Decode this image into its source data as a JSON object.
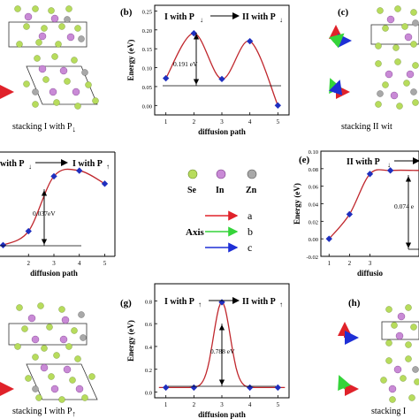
{
  "panels": {
    "b": {
      "label": "(b)",
      "title_left": "I with P",
      "title_right": "II with P",
      "arrow_left": "↓",
      "arrow_right": "↓",
      "ylabel": "Energy (eV)",
      "xlabel": "diffusion path",
      "yticks": [
        "0.00",
        "0.05",
        "0.10",
        "0.15",
        "0.20",
        "0.25"
      ],
      "xticks": [
        "1",
        "2",
        "3",
        "4",
        "5"
      ],
      "annotation": "0.191 eV"
    },
    "c": {
      "label": "(c)",
      "caption": "stacking II wit"
    },
    "a": {
      "caption": "stacking I with P",
      "caption_arrow": "↓"
    },
    "d": {
      "title_left": "with P",
      "title_right": "I with P",
      "arrow_left": "↓",
      "arrow_right": "↑",
      "xlabel": "diffusion path",
      "xticks": [
        "2",
        "3",
        "4",
        "5"
      ],
      "annotation": "0.037eV"
    },
    "e": {
      "label": "(e)",
      "title_left": "II with P",
      "arrow_left": "↓",
      "ylabel": "Energy (eV)",
      "xlabel": "diffusio",
      "yticks": [
        "-0.02",
        "0.00",
        "0.02",
        "0.04",
        "0.06",
        "0.08",
        "0.10"
      ],
      "xticks": [
        "1",
        "2",
        "3"
      ],
      "annotation": "0.074 e"
    },
    "f": {
      "caption": "stacking I with P",
      "caption_arrow": "↑"
    },
    "g": {
      "label": "(g)",
      "title_left": "I with P",
      "title_right": "II with P",
      "arrow_left": "↑",
      "arrow_right": "↑",
      "ylabel": "Energy (eV)",
      "xlabel": "diffusion path",
      "yticks": [
        "0.0",
        "0.2",
        "0.4",
        "0.6",
        "0.8"
      ],
      "xticks": [
        "1",
        "2",
        "3",
        "4",
        "5"
      ],
      "annotation": "0.788 eV"
    },
    "h": {
      "label": "(h)",
      "caption": "stacking I"
    }
  },
  "legend": {
    "atoms": [
      "Se",
      "In",
      "Zn"
    ],
    "atom_colors": [
      "#b7dc5c",
      "#c98ad6",
      "#a8a8a8"
    ],
    "axis_label": "Axis",
    "axes": [
      "a",
      "b",
      "c"
    ],
    "axis_colors": [
      "#e0222a",
      "#35d43a",
      "#1e2fd6"
    ]
  },
  "colors": {
    "curve": "#c0272d",
    "marker": "#1f2fbf"
  },
  "chart_data": [
    {
      "type": "line",
      "panel": "b",
      "title": "I with P↓ → II with P↓",
      "xlabel": "diffusion path",
      "ylabel": "Energy (eV)",
      "x": [
        1,
        2,
        3,
        4,
        5
      ],
      "y": [
        0.072,
        0.191,
        0.07,
        0.17,
        0.0
      ],
      "xlim": [
        0.6,
        5.4
      ],
      "ylim": [
        -0.025,
        0.265
      ]
    },
    {
      "type": "line",
      "panel": "d",
      "title": "with P↓ → I with P↑",
      "xlabel": "diffusion path",
      "x": [
        1,
        2,
        3,
        4,
        5
      ],
      "y": [
        0.0,
        0.0075,
        0.037,
        0.04,
        0.033
      ],
      "xlim": [
        0.6,
        5.4
      ],
      "ylim": [
        -0.006,
        0.05
      ]
    },
    {
      "type": "line",
      "panel": "e",
      "title": "II with P↓",
      "xlabel": "diffusio",
      "ylabel": "Energy (eV)",
      "x": [
        1,
        2,
        3,
        4
      ],
      "y": [
        0.0,
        0.028,
        0.074,
        0.078
      ],
      "xlim": [
        0.6,
        5.4
      ],
      "ylim": [
        -0.02,
        0.1
      ]
    },
    {
      "type": "line",
      "panel": "g",
      "title": "I with P↑ → II with P↑",
      "xlabel": "diffusion path",
      "ylabel": "Energy (eV)",
      "x": [
        1,
        2,
        3,
        4,
        5
      ],
      "y": [
        0.04,
        0.04,
        0.788,
        0.04,
        0.04
      ],
      "xlim": [
        0.6,
        5.4
      ],
      "ylim": [
        -0.05,
        0.95
      ]
    }
  ]
}
